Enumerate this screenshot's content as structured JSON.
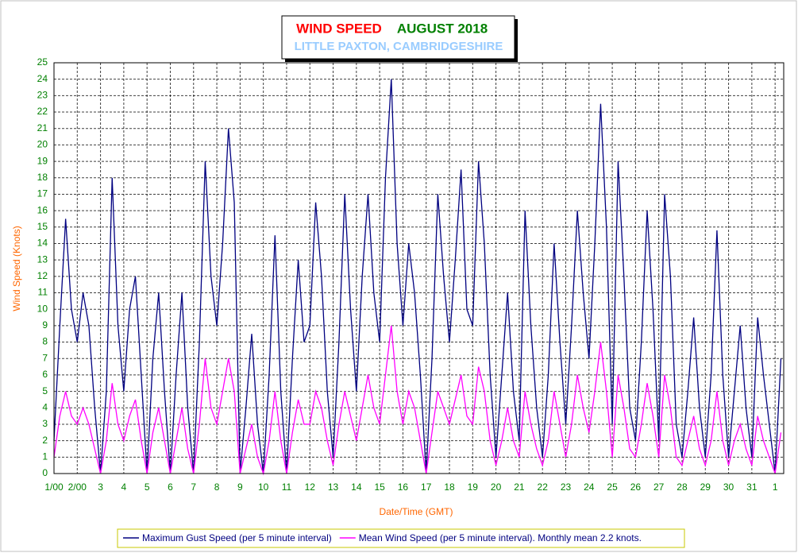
{
  "chart_data": {
    "type": "line",
    "title": "WIND SPEED",
    "title_date": "AUGUST 2018",
    "subtitle": "LITTLE PAXTON, CAMBRIDGESHIRE",
    "ylabel": "Wind Speed (Knots)",
    "xlabel": "Date/Time (GMT)",
    "legend": "bottom",
    "grid": true,
    "xlim": [
      0,
      31.37
    ],
    "ylim": [
      0,
      25
    ],
    "yticks": [
      0,
      1,
      2,
      3,
      4,
      5,
      6,
      7,
      8,
      9,
      10,
      11,
      12,
      13,
      14,
      15,
      16,
      17,
      18,
      19,
      20,
      21,
      22,
      23,
      24,
      25
    ],
    "xticks": [
      {
        "value": 0,
        "label": "1/00"
      },
      {
        "value": 1,
        "label": "2/00"
      },
      {
        "value": 2,
        "label": "3"
      },
      {
        "value": 3,
        "label": "4"
      },
      {
        "value": 4,
        "label": "5"
      },
      {
        "value": 5,
        "label": "6"
      },
      {
        "value": 6,
        "label": "7"
      },
      {
        "value": 7,
        "label": "8"
      },
      {
        "value": 8,
        "label": "9"
      },
      {
        "value": 9,
        "label": "10"
      },
      {
        "value": 10,
        "label": "11"
      },
      {
        "value": 11,
        "label": "12"
      },
      {
        "value": 12,
        "label": "13"
      },
      {
        "value": 13,
        "label": "14"
      },
      {
        "value": 14,
        "label": "15"
      },
      {
        "value": 15,
        "label": "16"
      },
      {
        "value": 16,
        "label": "17"
      },
      {
        "value": 17,
        "label": "18"
      },
      {
        "value": 18,
        "label": "19"
      },
      {
        "value": 19,
        "label": "20"
      },
      {
        "value": 20,
        "label": "21"
      },
      {
        "value": 21,
        "label": "22"
      },
      {
        "value": 22,
        "label": "23"
      },
      {
        "value": 23,
        "label": "24"
      },
      {
        "value": 24,
        "label": "25"
      },
      {
        "value": 25,
        "label": "26"
      },
      {
        "value": 26,
        "label": "27"
      },
      {
        "value": 27,
        "label": "28"
      },
      {
        "value": 28,
        "label": "29"
      },
      {
        "value": 29,
        "label": "30"
      },
      {
        "value": 30,
        "label": "31"
      },
      {
        "value": 31,
        "label": "1"
      }
    ],
    "x": [
      0,
      0.25,
      0.5,
      0.75,
      1,
      1.25,
      1.5,
      1.75,
      2,
      2.25,
      2.5,
      2.75,
      3,
      3.25,
      3.5,
      3.75,
      4,
      4.25,
      4.5,
      4.75,
      5,
      5.25,
      5.5,
      5.75,
      6,
      6.25,
      6.5,
      6.75,
      7,
      7.25,
      7.5,
      7.75,
      8,
      8.25,
      8.5,
      8.75,
      9,
      9.25,
      9.5,
      9.75,
      10,
      10.25,
      10.5,
      10.75,
      11,
      11.25,
      11.5,
      11.75,
      12,
      12.25,
      12.5,
      12.75,
      13,
      13.25,
      13.5,
      13.75,
      14,
      14.25,
      14.5,
      14.75,
      15,
      15.25,
      15.5,
      15.75,
      16,
      16.25,
      16.5,
      16.75,
      17,
      17.25,
      17.5,
      17.75,
      18,
      18.25,
      18.5,
      18.75,
      19,
      19.25,
      19.5,
      19.75,
      20,
      20.25,
      20.5,
      20.75,
      21,
      21.25,
      21.5,
      21.75,
      22,
      22.25,
      22.5,
      22.75,
      23,
      23.25,
      23.5,
      23.75,
      24,
      24.25,
      24.5,
      24.75,
      25,
      25.25,
      25.5,
      25.75,
      26,
      26.25,
      26.5,
      26.75,
      27,
      27.25,
      27.5,
      27.75,
      28,
      28.25,
      28.5,
      28.75,
      29,
      29.25,
      29.5,
      29.75,
      30,
      30.25,
      30.5,
      30.75,
      31,
      31.25
    ],
    "series": [
      {
        "name": "Maximum Gust Speed (per 5 minute interval)",
        "color": "#000080",
        "values": [
          2,
          9,
          15.5,
          10,
          8,
          11,
          9,
          4,
          0,
          5,
          18,
          9,
          5,
          10,
          12,
          6,
          0,
          7,
          11,
          5,
          0,
          6,
          11,
          4,
          0,
          8,
          19,
          12,
          9,
          14,
          21,
          16.5,
          0,
          4,
          8.5,
          3,
          0,
          6,
          14.5,
          5,
          0,
          7,
          13,
          8,
          9,
          16.5,
          12,
          5,
          1,
          8,
          17,
          10,
          5,
          12,
          17,
          11,
          8,
          18,
          24,
          14,
          9,
          14,
          11,
          6,
          0,
          7,
          17,
          12,
          8,
          13,
          18.5,
          10,
          9,
          19,
          14,
          6,
          1,
          6,
          11,
          5,
          2,
          16,
          9,
          4,
          1,
          6,
          14,
          8,
          3,
          9,
          16,
          11,
          7,
          14,
          22.5,
          15,
          3,
          19,
          12,
          4,
          2,
          8,
          16,
          10,
          2,
          17,
          12,
          3,
          1,
          5,
          9.5,
          4,
          1,
          6,
          14.8,
          6,
          1,
          5,
          9,
          4,
          1,
          9.5,
          6,
          3,
          0,
          7
        ]
      },
      {
        "name": "Mean Wind Speed (per 5 minute interval). Monthly mean 2.2 knots.",
        "color": "#ff00ff",
        "values": [
          1,
          3.5,
          5,
          3.5,
          3,
          4,
          3,
          1.5,
          0,
          2,
          5.5,
          3,
          2,
          3.5,
          4.5,
          2,
          0,
          2.5,
          4,
          2,
          0,
          2,
          4,
          1.5,
          0,
          3,
          7,
          4,
          3,
          5,
          7,
          5,
          0,
          1.5,
          3,
          1,
          0,
          2,
          5,
          2,
          0,
          2.5,
          4.5,
          3,
          3,
          5,
          4,
          2,
          0.5,
          3,
          5,
          3.5,
          2,
          4,
          6,
          4,
          3,
          6,
          9,
          5,
          3,
          5,
          4,
          2,
          0,
          2.5,
          5,
          4,
          3,
          4.5,
          6,
          3.5,
          3,
          6.5,
          5,
          2,
          0.5,
          2,
          4,
          2,
          1,
          5,
          3,
          1.5,
          0.5,
          2,
          5,
          3,
          1,
          3,
          6,
          4,
          2.5,
          5,
          8,
          5,
          1,
          6,
          4,
          1.5,
          1,
          3,
          5.5,
          3.5,
          1,
          6,
          4,
          1,
          0.5,
          2,
          3.5,
          1.5,
          0.5,
          2,
          5,
          2,
          0.5,
          2,
          3,
          1.5,
          0.5,
          3.5,
          2,
          1,
          0,
          2.5
        ]
      }
    ]
  }
}
